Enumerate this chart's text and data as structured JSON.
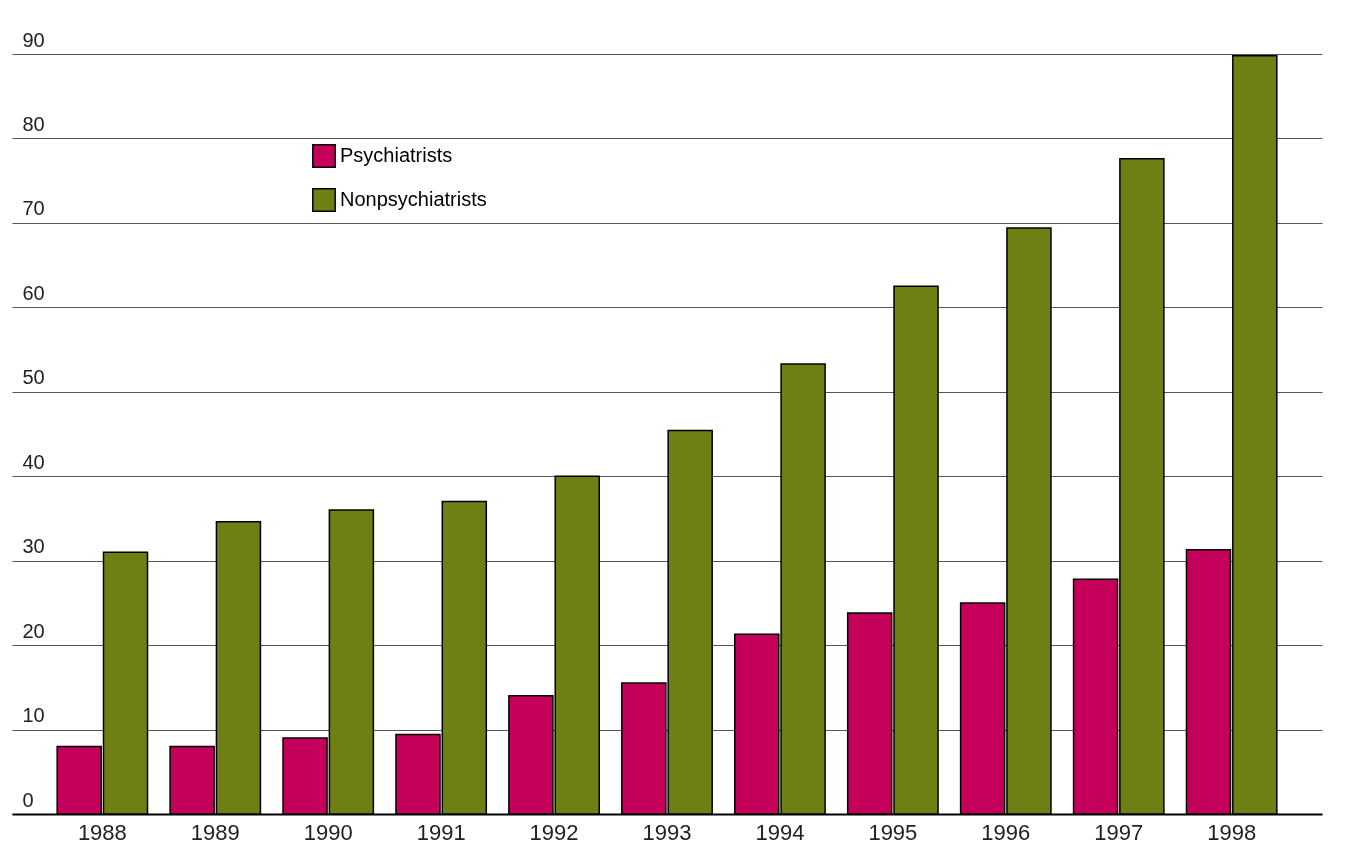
{
  "chart_data": {
    "type": "bar",
    "categories": [
      "1988",
      "1989",
      "1990",
      "1991",
      "1992",
      "1993",
      "1994",
      "1995",
      "1996",
      "1997",
      "1998"
    ],
    "series": [
      {
        "name": "Psychiatrists",
        "color": "#c4005a",
        "values": [
          8,
          8,
          9,
          9.4,
          14,
          15.5,
          21.3,
          23.8,
          25,
          27.8,
          31.3
        ]
      },
      {
        "name": "Nonpsychiatrists",
        "color": "#6e7f14",
        "values": [
          31,
          34.6,
          36,
          37,
          40,
          45.4,
          53.3,
          62.5,
          69.4,
          77.6,
          89.8
        ]
      }
    ],
    "ylim": [
      0,
      90
    ],
    "yticks": [
      0,
      10,
      20,
      30,
      40,
      50,
      60,
      70,
      80,
      90
    ],
    "grid": "y",
    "legend": "top left"
  }
}
